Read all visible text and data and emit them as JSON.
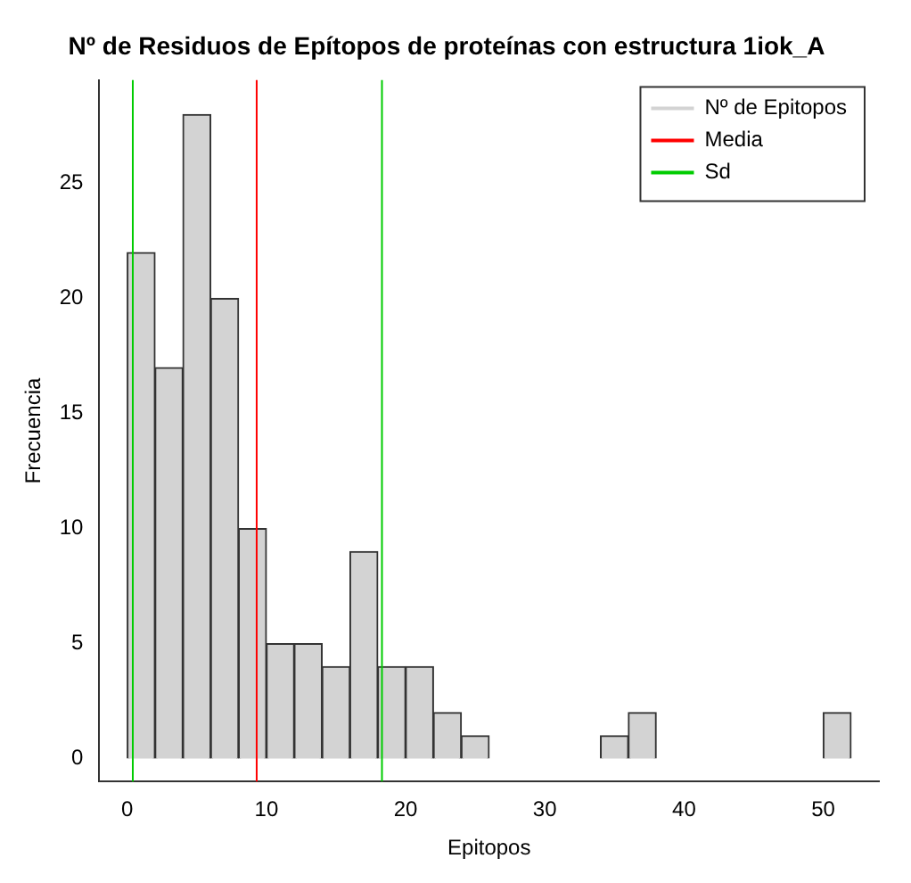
{
  "chart_data": {
    "type": "histogram",
    "title": "Nº de Residuos de Epítopos de proteínas con estructura 1iok_A",
    "xlabel": "Epitopos",
    "ylabel": "Frecuencia",
    "bins": [
      0,
      2,
      4,
      6,
      8,
      10,
      12,
      14,
      16,
      18,
      20,
      22,
      24,
      26,
      28,
      30,
      32,
      34,
      36,
      38,
      40,
      42,
      44,
      46,
      48,
      50,
      52
    ],
    "series": [
      {
        "name": "Nº de Epitopos",
        "color": "#d3d3d3",
        "values": [
          22,
          17,
          28,
          20,
          10,
          5,
          5,
          4,
          9,
          4,
          4,
          2,
          1,
          0,
          0,
          0,
          0,
          1,
          2,
          0,
          0,
          0,
          0,
          0,
          0,
          2
        ]
      },
      {
        "name": "Media",
        "type": "line",
        "color": "#ff0000",
        "x": [
          9.3,
          9.3
        ],
        "values": [
          -1,
          29.5
        ]
      },
      {
        "name": "Sd",
        "type": "line",
        "color": "#00cc00",
        "x": [
          0.4,
          0.4
        ],
        "values": [
          -1,
          29.5
        ]
      },
      {
        "type": "line",
        "color": "#00cc00",
        "x": [
          18.3,
          18.3
        ],
        "values": [
          -1,
          29.5
        ]
      }
    ],
    "xlim": [
      -2,
      54
    ],
    "xticks": [
      0,
      10,
      20,
      30,
      40,
      50
    ],
    "ylim": [
      -1,
      29.5
    ],
    "yticks": [
      0,
      5,
      10,
      15,
      20,
      25
    ],
    "grid": false,
    "legend": "top right"
  }
}
